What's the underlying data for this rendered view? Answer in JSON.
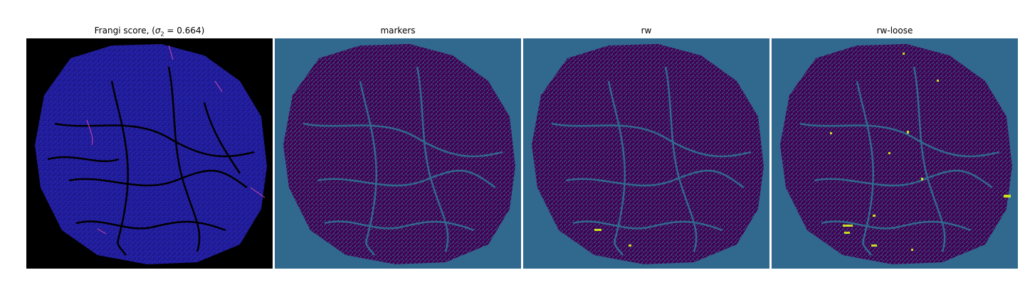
{
  "figure": {
    "panels": [
      {
        "title_prefix": "Frangi score, (",
        "sigma_symbol": "σ",
        "sigma_sub": "2",
        "title_suffix": " = 0.664)"
      },
      {
        "title": "markers"
      },
      {
        "title": "rw"
      },
      {
        "title": "rw-loose"
      }
    ],
    "colors": {
      "frangi_background": "#000000",
      "frangi_vessel_fill": "#1f1a8f",
      "frangi_vessel_texture": "#2a2ac8",
      "frangi_highlight": "#d24aa8",
      "label_background": "#31688e",
      "label_vessel": "#440154",
      "label_texture": "#2d5f8a",
      "label_highlight": "#c8e020"
    }
  }
}
